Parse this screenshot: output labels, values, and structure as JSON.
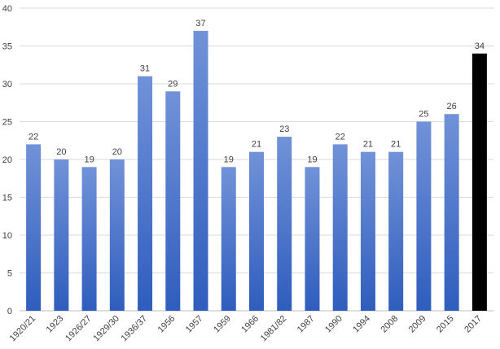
{
  "chart_data": {
    "type": "bar",
    "categories": [
      "1920/21",
      "1923",
      "1926/27",
      "1929/30",
      "1936/37",
      "1956",
      "1957",
      "1959",
      "1966",
      "1981/82",
      "1987",
      "1990",
      "1994",
      "2008",
      "2009",
      "2015",
      "2017"
    ],
    "values": [
      22,
      20,
      19,
      20,
      31,
      29,
      37,
      19,
      21,
      23,
      19,
      22,
      21,
      21,
      25,
      26,
      34
    ],
    "data_labels": [
      "22",
      "20",
      "19",
      "20",
      "31",
      "29",
      "37",
      "19",
      "21",
      "23",
      "19",
      "22",
      "21",
      "21",
      "25",
      "26",
      "34"
    ],
    "y_ticks": [
      "0",
      "5",
      "10",
      "15",
      "20",
      "25",
      "30",
      "35",
      "40"
    ],
    "ylim": [
      0,
      40
    ],
    "grid": true,
    "title": "",
    "xlabel": "",
    "ylabel": "",
    "colors": {
      "bar_gradient_top": "#7192d8",
      "bar_gradient_bottom": "#2f5dbd",
      "highlight_bar": "#000000",
      "grid": "#d9d9d9",
      "text": "#404040"
    },
    "highlight_index": 16
  }
}
